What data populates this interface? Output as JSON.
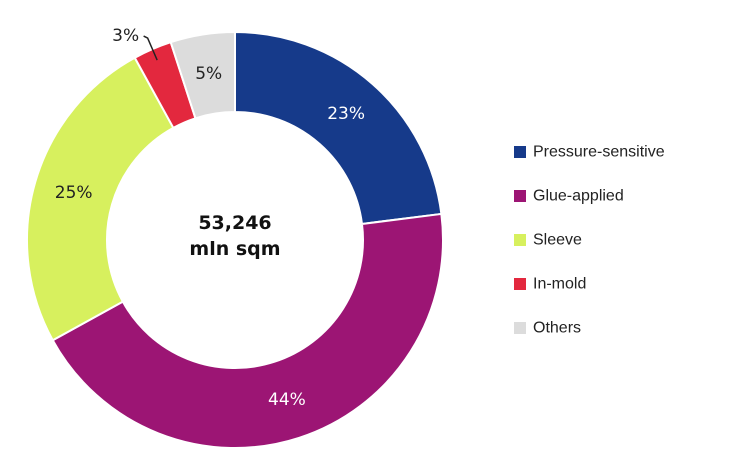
{
  "chart_data": {
    "type": "pie",
    "donut": true,
    "center_text": [
      "53,246",
      "mln sqm"
    ],
    "categories": [
      "Pressure-sensitive",
      "Glue-applied",
      "Sleeve",
      "In-mold",
      "Others"
    ],
    "values": [
      23,
      44,
      25,
      3,
      5
    ],
    "value_labels": [
      "23%",
      "44%",
      "25%",
      "3%",
      "5%"
    ],
    "colors": [
      "#163a8a",
      "#9c1574",
      "#d7f05e",
      "#e3283e",
      "#dcdcdc"
    ],
    "label_colors": [
      "#ffffff",
      "#ffffff",
      "#222222",
      "#222222",
      "#222222"
    ],
    "start_angle_deg": 0,
    "direction": "clockwise",
    "legend_position": "right"
  }
}
